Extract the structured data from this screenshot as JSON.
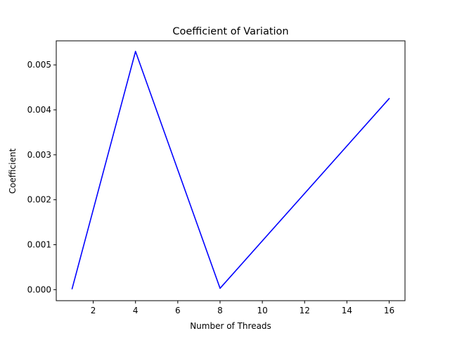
{
  "chart_data": {
    "type": "line",
    "title": "Coefficient of Variation",
    "xlabel": "Number of Threads",
    "ylabel": "Coefficient",
    "xlim": [
      0.25,
      16.75
    ],
    "ylim": [
      -0.000245,
      0.005535
    ],
    "xticks": [
      2,
      4,
      6,
      8,
      10,
      12,
      14,
      16
    ],
    "xtick_labels": [
      "2",
      "4",
      "6",
      "8",
      "10",
      "12",
      "14",
      "16"
    ],
    "yticks": [
      0.0,
      0.001,
      0.002,
      0.003,
      0.004,
      0.005
    ],
    "ytick_labels": [
      "0.000",
      "0.001",
      "0.002",
      "0.003",
      "0.004",
      "0.005"
    ],
    "grid": false,
    "series": [
      {
        "color": "#0000ff",
        "x": [
          1,
          4,
          8,
          16
        ],
        "y": [
          2e-05,
          0.0053,
          3e-05,
          0.00425
        ]
      }
    ]
  }
}
